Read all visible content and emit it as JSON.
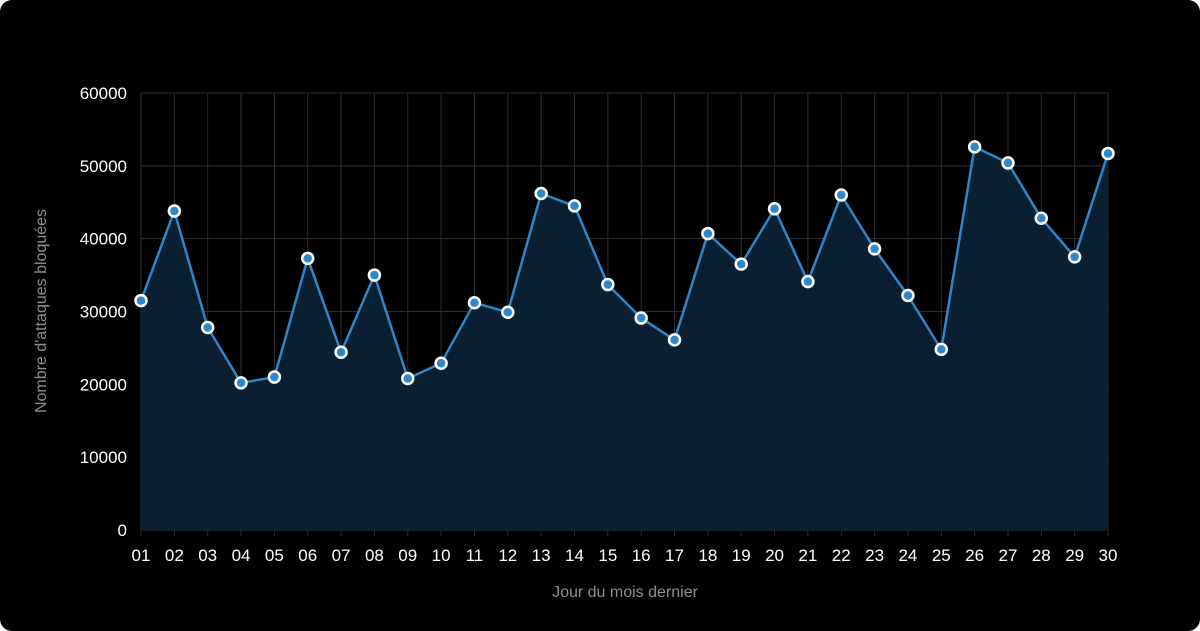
{
  "colors": {
    "background": "#000000",
    "line": "#2f86c9",
    "fill": "#0b2236",
    "grid": "#2b2f34",
    "point_fill": "#2f86c9",
    "point_stroke": "#ffffff"
  },
  "chart_data": {
    "type": "area",
    "xlabel": "Jour du mois dernier",
    "ylabel": "Nombre d'attaques bloquées",
    "ylim": [
      0,
      60000
    ],
    "yticks": [
      "0",
      "10000",
      "20000",
      "30000",
      "40000",
      "50000",
      "60000"
    ],
    "categories": [
      "01",
      "02",
      "03",
      "04",
      "05",
      "06",
      "07",
      "08",
      "09",
      "10",
      "11",
      "12",
      "13",
      "14",
      "15",
      "16",
      "17",
      "18",
      "19",
      "20",
      "21",
      "22",
      "23",
      "24",
      "25",
      "26",
      "27",
      "28",
      "29",
      "30"
    ],
    "series": [
      {
        "values": [
          31500,
          43800,
          27800,
          20200,
          21000,
          37300,
          24400,
          35000,
          20800,
          22900,
          31200,
          29900,
          46200,
          44500,
          33700,
          29100,
          26100,
          40700,
          36500,
          44100,
          34100,
          46000,
          38600,
          32200,
          24800,
          52600,
          50400,
          42800,
          37500,
          51700
        ]
      }
    ],
    "grid": true,
    "legend": "none"
  }
}
